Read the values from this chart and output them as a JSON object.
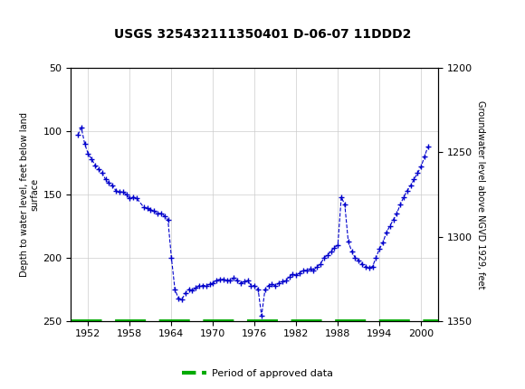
{
  "title": "USGS 325432111350401 D-06-07 11DDD2",
  "ylabel_left": "Depth to water level, feet below land\nsurface",
  "ylabel_right": "Groundwater level above NGVD 1929, feet",
  "ylim_left": [
    50,
    250
  ],
  "ylim_right": [
    1350,
    1200
  ],
  "xlim": [
    1949.5,
    2002.5
  ],
  "xticks": [
    1952,
    1958,
    1964,
    1970,
    1976,
    1982,
    1988,
    1994,
    2000
  ],
  "yticks_left": [
    50,
    100,
    150,
    200,
    250
  ],
  "yticks_right": [
    1350,
    1300,
    1250,
    1200
  ],
  "yticks_right_labels": [
    "1350",
    "1300",
    "1250",
    "1200"
  ],
  "header_color": "#1b6b3a",
  "data_color": "#0000cc",
  "approved_color": "#00aa00",
  "bg_color": "#ffffff",
  "data_x": [
    1950.5,
    1951.0,
    1951.5,
    1952.0,
    1952.5,
    1953.0,
    1953.5,
    1954.0,
    1954.5,
    1955.0,
    1955.5,
    1956.0,
    1956.5,
    1957.0,
    1957.5,
    1958.0,
    1958.5,
    1959.0,
    1960.0,
    1960.5,
    1961.0,
    1961.5,
    1962.0,
    1962.5,
    1963.0,
    1963.5,
    1964.0,
    1964.5,
    1965.0,
    1965.5,
    1966.0,
    1966.5,
    1967.0,
    1967.5,
    1968.0,
    1968.5,
    1969.0,
    1969.5,
    1970.0,
    1970.5,
    1971.0,
    1971.5,
    1972.0,
    1972.5,
    1973.0,
    1973.5,
    1974.0,
    1974.5,
    1975.0,
    1975.5,
    1976.0,
    1976.5,
    1977.0,
    1977.5,
    1978.0,
    1978.5,
    1979.0,
    1979.5,
    1980.0,
    1980.5,
    1981.0,
    1981.5,
    1982.0,
    1982.5,
    1983.0,
    1983.5,
    1984.0,
    1984.5,
    1985.0,
    1985.5,
    1986.0,
    1986.5,
    1987.0,
    1987.5,
    1988.0,
    1988.5,
    1989.0,
    1989.5,
    1990.0,
    1990.5,
    1991.0,
    1991.5,
    1992.0,
    1992.5,
    1993.0,
    1993.5,
    1994.0,
    1994.5,
    1995.0,
    1995.5,
    1996.0,
    1996.5,
    1997.0,
    1997.5,
    1998.0,
    1998.5,
    1999.0,
    1999.5,
    2000.0,
    2000.5,
    2001.0
  ],
  "data_y": [
    103,
    97,
    110,
    118,
    122,
    127,
    130,
    133,
    138,
    141,
    143,
    147,
    148,
    148,
    150,
    153,
    152,
    153,
    160,
    161,
    162,
    163,
    165,
    165,
    167,
    170,
    200,
    225,
    232,
    233,
    228,
    225,
    226,
    224,
    222,
    222,
    222,
    221,
    220,
    218,
    217,
    217,
    218,
    218,
    216,
    218,
    220,
    219,
    218,
    222,
    222,
    225,
    246,
    225,
    222,
    221,
    222,
    220,
    219,
    218,
    215,
    213,
    214,
    212,
    210,
    210,
    209,
    210,
    207,
    205,
    200,
    198,
    195,
    192,
    190,
    152,
    158,
    187,
    195,
    200,
    202,
    205,
    207,
    208,
    207,
    200,
    193,
    188,
    180,
    175,
    170,
    165,
    158,
    152,
    147,
    143,
    138,
    133,
    128,
    120,
    112
  ],
  "approved_y": 250,
  "legend_label": "Period of approved data",
  "grid_color": "#cccccc",
  "spine_color": "#000000"
}
